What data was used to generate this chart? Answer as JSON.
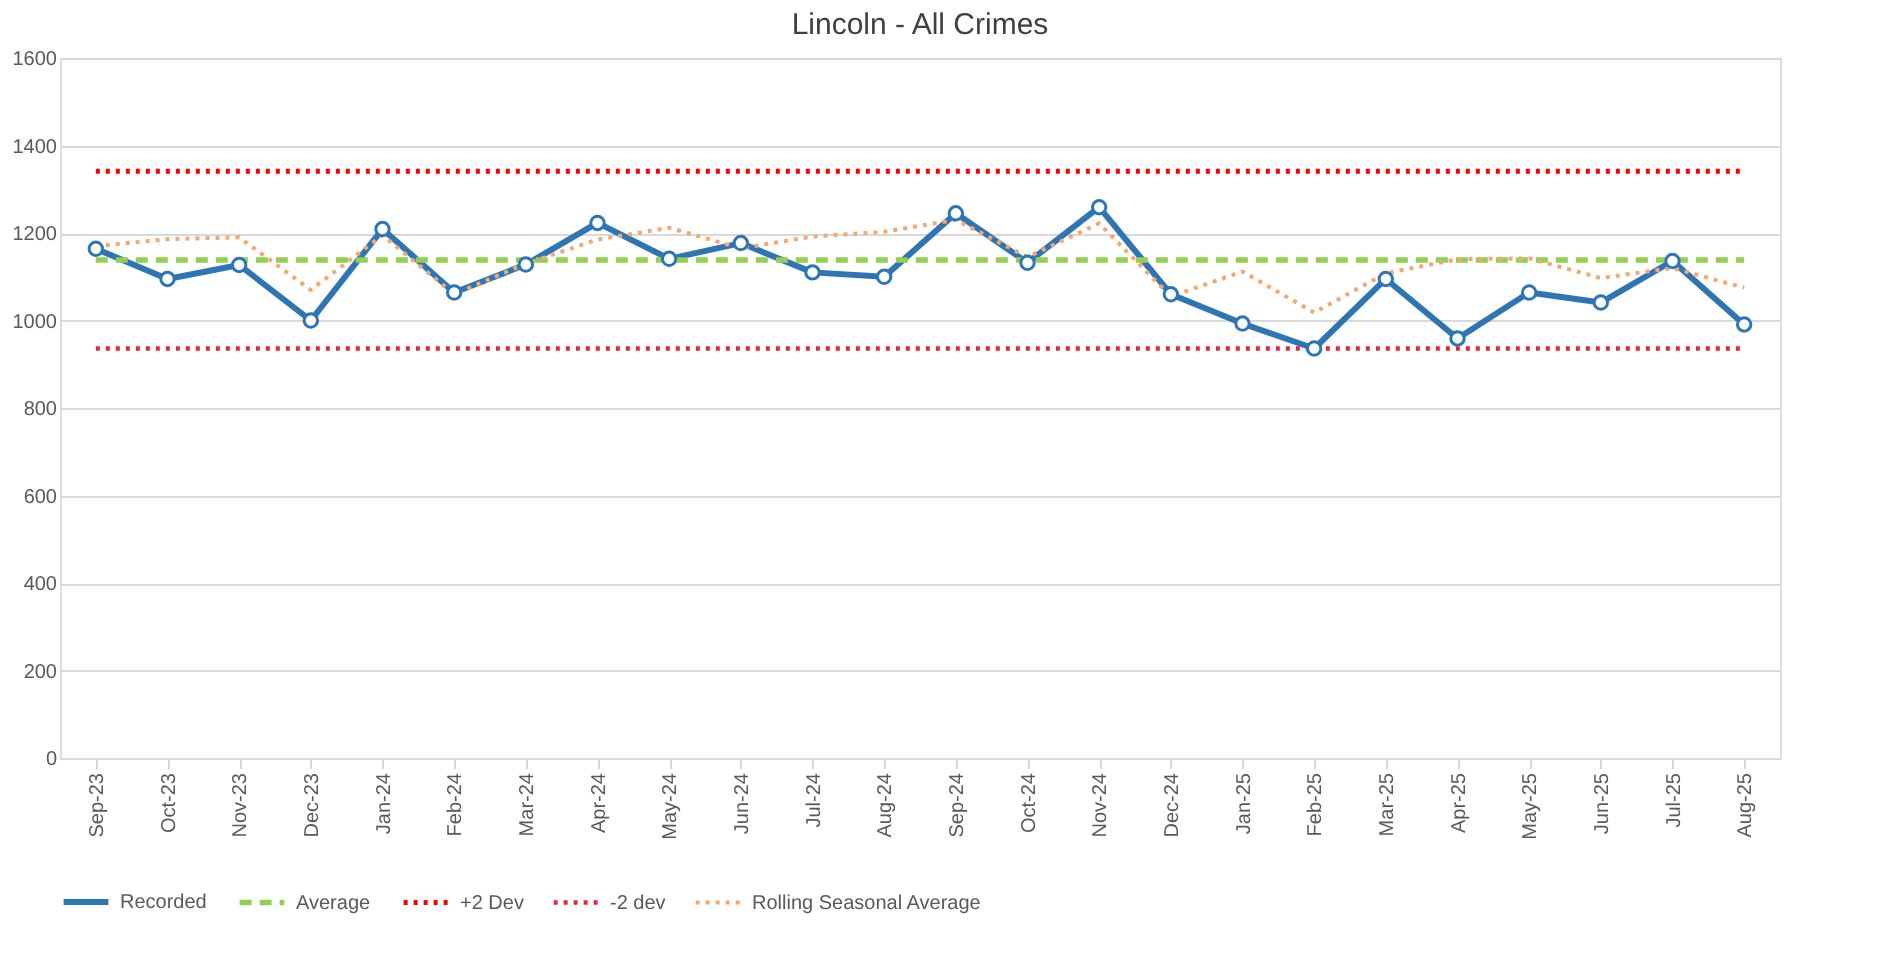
{
  "chart_data": {
    "type": "line",
    "title": "Lincoln - All Crimes",
    "categories": [
      "Sep-23",
      "Oct-23",
      "Nov-23",
      "Dec-23",
      "Jan-24",
      "Feb-24",
      "Mar-24",
      "Apr-24",
      "May-24",
      "Jun-24",
      "Jul-24",
      "Aug-24",
      "Sep-24",
      "Oct-24",
      "Nov-24",
      "Dec-24",
      "Jan-25",
      "Feb-25",
      "Mar-25",
      "Apr-25",
      "May-25",
      "Jun-25",
      "Jul-25",
      "Aug-25"
    ],
    "series": [
      {
        "name": "Recorded",
        "color": "#2e75b6",
        "marker": "circle",
        "line_style": "solid",
        "values": [
          1164,
          1095,
          1127,
          1000,
          1209,
          1064,
          1128,
          1223,
          1141,
          1177,
          1110,
          1100,
          1245,
          1132,
          1259,
          1060,
          993,
          936,
          1095,
          959,
          1064,
          1041,
          1136,
          991
        ]
      },
      {
        "name": "Average",
        "color": "#92d050",
        "marker": "none",
        "line_style": "dashed",
        "values": [
          1138,
          1138,
          1138,
          1138,
          1138,
          1138,
          1138,
          1138,
          1138,
          1138,
          1138,
          1138,
          1138,
          1138,
          1138,
          1138,
          1138,
          1138,
          1138,
          1138,
          1138,
          1138,
          1138,
          1138
        ]
      },
      {
        "name": "+2 Dev",
        "color": "#ff0000",
        "marker": "none",
        "line_style": "dotted",
        "values": [
          1341,
          1341,
          1341,
          1341,
          1341,
          1341,
          1341,
          1341,
          1341,
          1341,
          1341,
          1341,
          1341,
          1341,
          1341,
          1341,
          1341,
          1341,
          1341,
          1341,
          1341,
          1341,
          1341,
          1341
        ]
      },
      {
        "name": "-2 dev",
        "color": "#e8243c",
        "marker": "none",
        "line_style": "dotted",
        "values": [
          936,
          936,
          936,
          936,
          936,
          936,
          936,
          936,
          936,
          936,
          936,
          936,
          936,
          936,
          936,
          936,
          936,
          936,
          936,
          936,
          936,
          936,
          936,
          936
        ]
      },
      {
        "name": "Rolling Seasonal Average",
        "color": "#f4a870",
        "marker": "none",
        "line_style": "dotted",
        "values": [
          1170,
          1186,
          1190,
          1070,
          1195,
          1060,
          1130,
          1185,
          1212,
          1165,
          1192,
          1203,
          1230,
          1145,
          1222,
          1055,
          1112,
          1018,
          1108,
          1140,
          1142,
          1097,
          1120,
          1075
        ]
      }
    ],
    "ylim": [
      0,
      1600
    ],
    "yticks": [
      0,
      200,
      400,
      600,
      800,
      1000,
      1200,
      1400,
      1600
    ],
    "grid": "y",
    "legend": "bottom"
  }
}
